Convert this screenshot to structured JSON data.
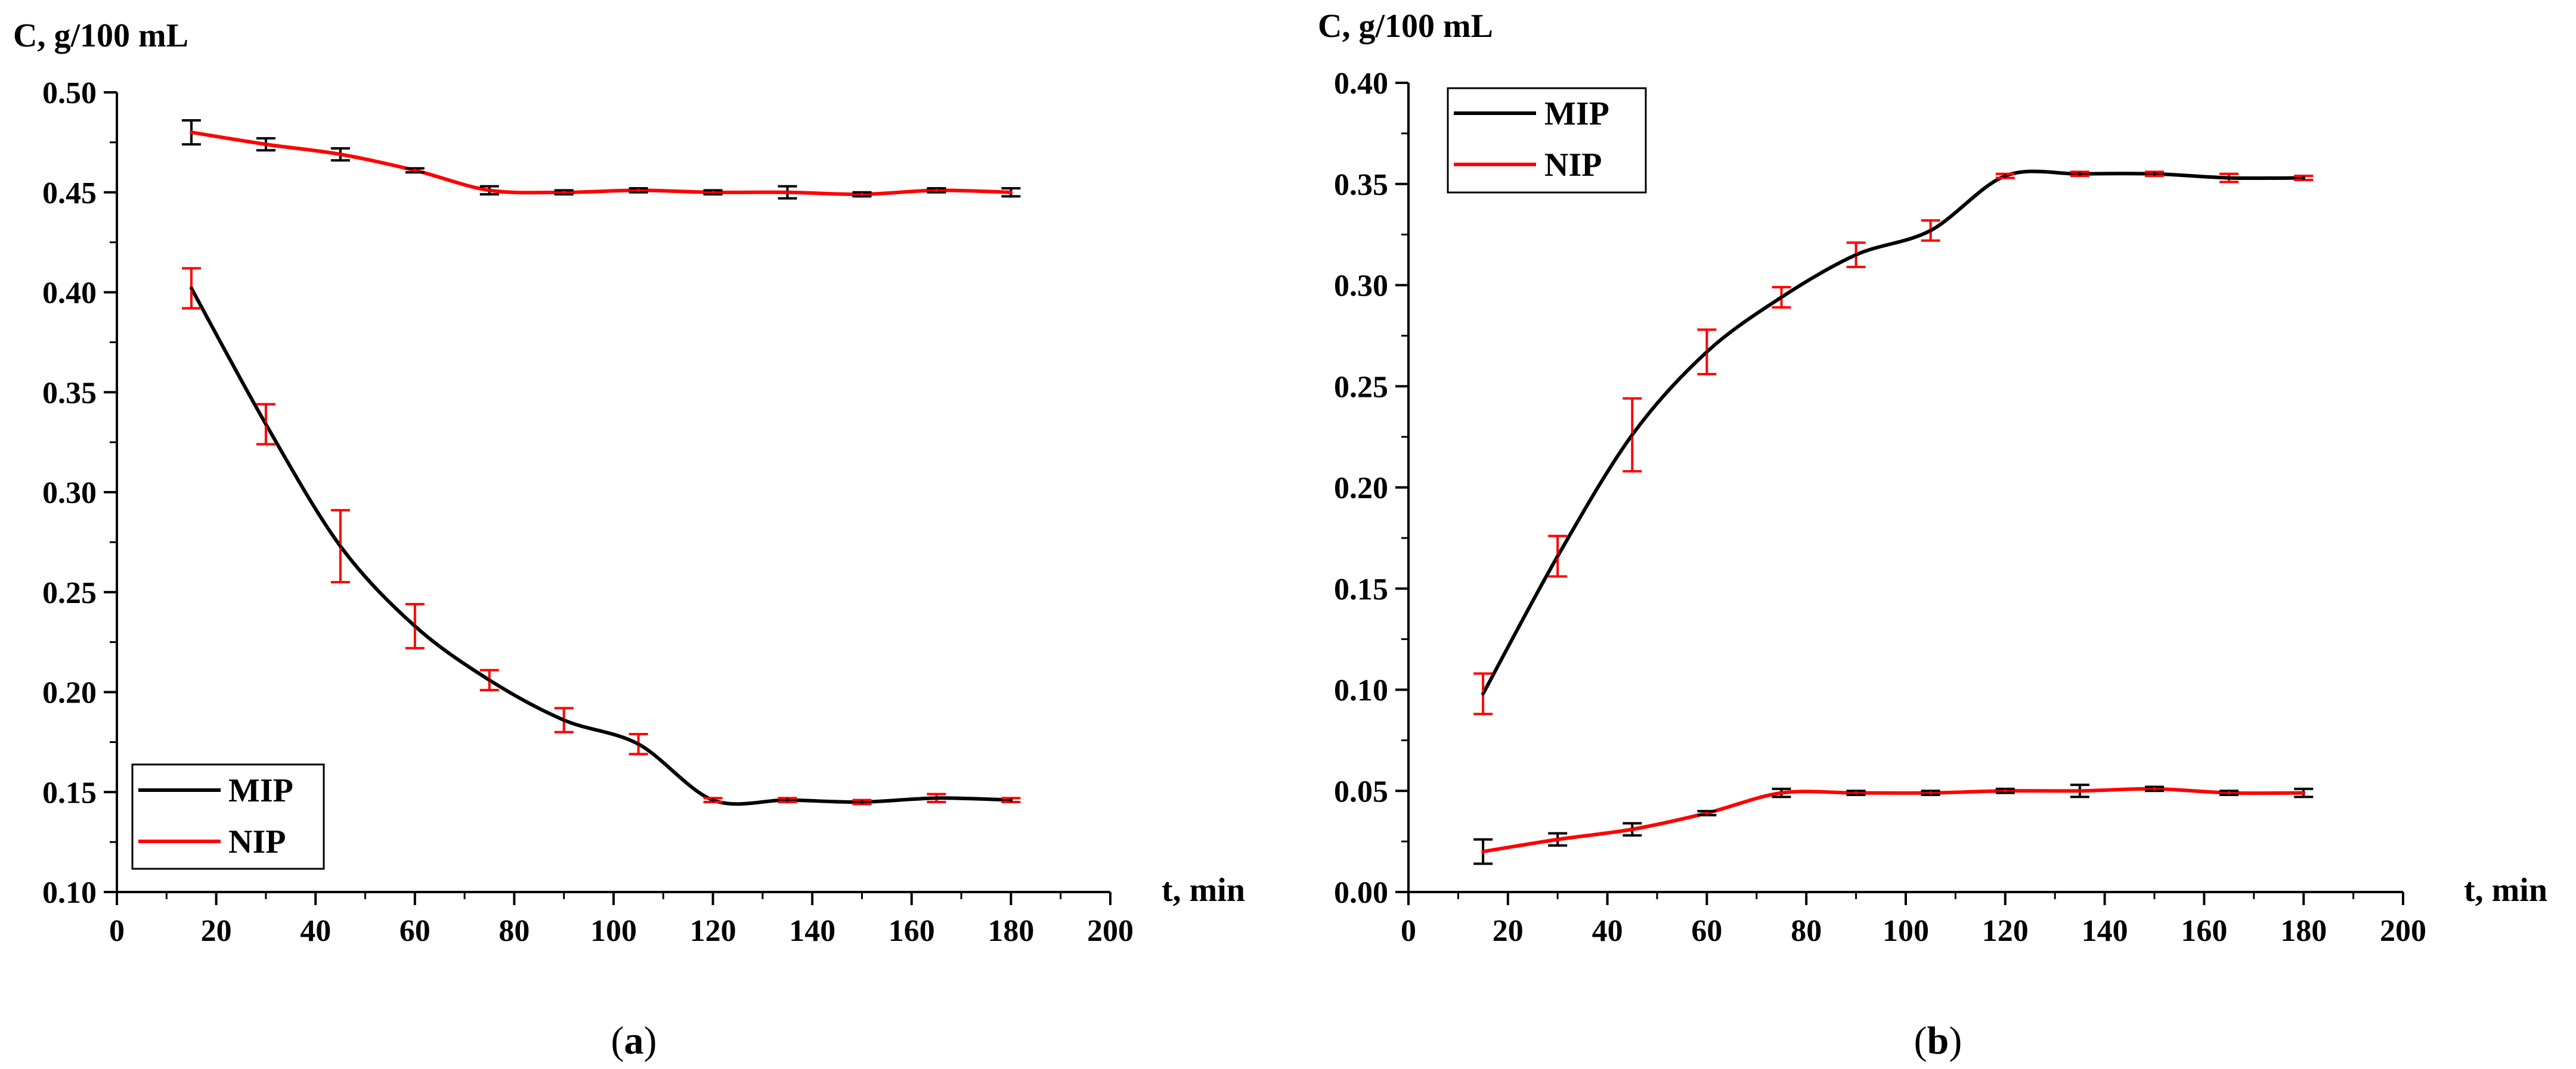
{
  "colors": {
    "mip": "#000000",
    "nip": "#ff0000",
    "axis": "#000000",
    "background": "#ffffff"
  },
  "chart_data": [
    {
      "type": "line",
      "panel_label": "a",
      "xlabel": "t, min",
      "ylabel": "C, g/100 mL",
      "xlim": [
        0,
        200
      ],
      "ylim": [
        0.1,
        0.5
      ],
      "xticks": [
        0,
        20,
        40,
        60,
        80,
        100,
        120,
        140,
        160,
        180,
        200
      ],
      "yticks": [
        0.1,
        0.15,
        0.2,
        0.25,
        0.3,
        0.35,
        0.4,
        0.45,
        0.5
      ],
      "xtick_labels": [
        "0",
        "20",
        "40",
        "60",
        "80",
        "100",
        "120",
        "140",
        "160",
        "180",
        "200"
      ],
      "ytick_labels": [
        "0.10",
        "0.15",
        "0.20",
        "0.25",
        "0.30",
        "0.35",
        "0.40",
        "0.45",
        "0.50"
      ],
      "legend_position": "bottom-left",
      "series": [
        {
          "name": "MIP",
          "line_color": "#000000",
          "errorbar_color": "#ff0000",
          "x": [
            15,
            30,
            45,
            60,
            75,
            90,
            105,
            120,
            135,
            150,
            165,
            180
          ],
          "y": [
            0.402,
            0.334,
            0.273,
            0.233,
            0.206,
            0.186,
            0.174,
            0.146,
            0.146,
            0.145,
            0.147,
            0.146
          ],
          "err": [
            0.01,
            0.01,
            0.018,
            0.011,
            0.005,
            0.006,
            0.005,
            0.001,
            0.001,
            0.001,
            0.002,
            0.001
          ]
        },
        {
          "name": "NIP",
          "line_color": "#ff0000",
          "errorbar_color": "#000000",
          "x": [
            15,
            30,
            45,
            60,
            75,
            90,
            105,
            120,
            135,
            150,
            165,
            180
          ],
          "y": [
            0.48,
            0.474,
            0.469,
            0.461,
            0.451,
            0.45,
            0.451,
            0.45,
            0.45,
            0.449,
            0.451,
            0.45
          ],
          "err": [
            0.006,
            0.003,
            0.003,
            0.001,
            0.002,
            0.001,
            0.001,
            0.001,
            0.003,
            0.001,
            0.001,
            0.002
          ]
        }
      ]
    },
    {
      "type": "line",
      "panel_label": "b",
      "xlabel": "t, min",
      "ylabel": "C, g/100 mL",
      "xlim": [
        0,
        200
      ],
      "ylim": [
        0.0,
        0.4
      ],
      "xticks": [
        0,
        20,
        40,
        60,
        80,
        100,
        120,
        140,
        160,
        180,
        200
      ],
      "yticks": [
        0.0,
        0.05,
        0.1,
        0.15,
        0.2,
        0.25,
        0.3,
        0.35,
        0.4
      ],
      "xtick_labels": [
        "0",
        "20",
        "40",
        "60",
        "80",
        "100",
        "120",
        "140",
        "160",
        "180",
        "200"
      ],
      "ytick_labels": [
        "0.00",
        "0.05",
        "0.10",
        "0.15",
        "0.20",
        "0.25",
        "0.30",
        "0.35",
        "0.40"
      ],
      "legend_position": "top-left",
      "series": [
        {
          "name": "MIP",
          "line_color": "#000000",
          "errorbar_color": "#ff0000",
          "x": [
            15,
            30,
            45,
            60,
            75,
            90,
            105,
            120,
            135,
            150,
            165,
            180
          ],
          "y": [
            0.098,
            0.166,
            0.226,
            0.267,
            0.294,
            0.315,
            0.327,
            0.354,
            0.355,
            0.355,
            0.353,
            0.353
          ],
          "err": [
            0.01,
            0.01,
            0.018,
            0.011,
            0.005,
            0.006,
            0.005,
            0.001,
            0.001,
            0.001,
            0.002,
            0.001
          ]
        },
        {
          "name": "NIP",
          "line_color": "#ff0000",
          "errorbar_color": "#000000",
          "x": [
            15,
            30,
            45,
            60,
            75,
            90,
            105,
            120,
            135,
            150,
            165,
            180
          ],
          "y": [
            0.02,
            0.026,
            0.031,
            0.039,
            0.049,
            0.049,
            0.049,
            0.05,
            0.05,
            0.051,
            0.049,
            0.049
          ],
          "err": [
            0.006,
            0.003,
            0.003,
            0.001,
            0.002,
            0.001,
            0.001,
            0.001,
            0.003,
            0.001,
            0.001,
            0.002
          ]
        }
      ]
    }
  ]
}
